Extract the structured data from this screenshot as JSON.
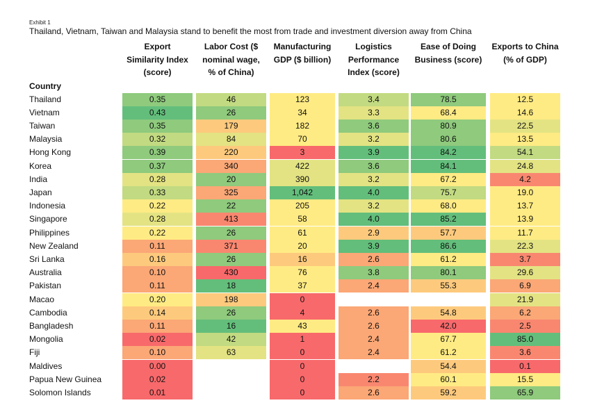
{
  "exhibit": "Exhibit 1",
  "title": "Thailand, Vietnam, Taiwan and Malaysia stand to benefit the most from trade and investment diversion away from China",
  "country_header": "Country",
  "columns": [
    {
      "key": "esi",
      "lines": [
        "Export",
        "Similarity Index",
        "(score)"
      ]
    },
    {
      "key": "labor",
      "lines": [
        "Labor Cost ($",
        "nominal wage,",
        "% of China)"
      ]
    },
    {
      "key": "mfg",
      "lines": [
        "Manufacturing",
        "GDP ($ billion)"
      ]
    },
    {
      "key": "lpi",
      "lines": [
        "Logistics",
        "Performance",
        "Index (score)"
      ]
    },
    {
      "key": "edb",
      "lines": [
        "Ease of Doing",
        "Business (score)"
      ]
    },
    {
      "key": "exp",
      "lines": [
        "Exports to China",
        "(% of GDP)"
      ]
    }
  ],
  "colors": {
    "dark_green": "#63be7b",
    "green": "#8fca7d",
    "light_green": "#c2da81",
    "yellow_green": "#e3e383",
    "yellow": "#ffeb84",
    "orange_light": "#fdca7d",
    "orange": "#fba776",
    "red_orange": "#f98770",
    "red": "#f8696b"
  },
  "rows": [
    {
      "country": "Thailand",
      "cells": [
        [
          "0.35",
          "green"
        ],
        [
          "46",
          "light_green"
        ],
        [
          "123",
          "yellow"
        ],
        [
          "3.4",
          "light_green"
        ],
        [
          "78.5",
          "green"
        ],
        [
          "12.5",
          "yellow"
        ]
      ]
    },
    {
      "country": "Vietnam",
      "cells": [
        [
          "0.43",
          "dark_green"
        ],
        [
          "26",
          "green"
        ],
        [
          "34",
          "yellow"
        ],
        [
          "3.3",
          "yellow_green"
        ],
        [
          "68.4",
          "yellow"
        ],
        [
          "14.6",
          "yellow"
        ]
      ]
    },
    {
      "country": "Taiwan",
      "cells": [
        [
          "0.35",
          "green"
        ],
        [
          "179",
          "orange_light"
        ],
        [
          "182",
          "yellow"
        ],
        [
          "3.6",
          "green"
        ],
        [
          "80.9",
          "green"
        ],
        [
          "22.5",
          "yellow_green"
        ]
      ]
    },
    {
      "country": "Malaysia",
      "cells": [
        [
          "0.32",
          "light_green"
        ],
        [
          "84",
          "yellow_green"
        ],
        [
          "70",
          "yellow"
        ],
        [
          "3.2",
          "yellow_green"
        ],
        [
          "80.6",
          "green"
        ],
        [
          "13.5",
          "yellow"
        ]
      ]
    },
    {
      "country": "Hong Kong",
      "cells": [
        [
          "0.39",
          "green"
        ],
        [
          "220",
          "orange_light"
        ],
        [
          "3",
          "red"
        ],
        [
          "3.9",
          "dark_green"
        ],
        [
          "84.2",
          "dark_green"
        ],
        [
          "54.1",
          "light_green"
        ]
      ]
    },
    {
      "country": "Korea",
      "cells": [
        [
          "0.37",
          "green"
        ],
        [
          "340",
          "orange"
        ],
        [
          "422",
          "yellow_green"
        ],
        [
          "3.6",
          "green"
        ],
        [
          "84.1",
          "dark_green"
        ],
        [
          "24.8",
          "yellow_green"
        ]
      ]
    },
    {
      "country": "India",
      "cells": [
        [
          "0.28",
          "yellow_green"
        ],
        [
          "20",
          "green"
        ],
        [
          "390",
          "yellow_green"
        ],
        [
          "3.2",
          "yellow_green"
        ],
        [
          "67.2",
          "yellow"
        ],
        [
          "4.2",
          "red_orange"
        ]
      ]
    },
    {
      "country": "Japan",
      "cells": [
        [
          "0.33",
          "light_green"
        ],
        [
          "325",
          "orange"
        ],
        [
          "1,042",
          "dark_green"
        ],
        [
          "4.0",
          "dark_green"
        ],
        [
          "75.7",
          "light_green"
        ],
        [
          "19.0",
          "yellow"
        ]
      ]
    },
    {
      "country": "Indonesia",
      "cells": [
        [
          "0.22",
          "yellow"
        ],
        [
          "22",
          "green"
        ],
        [
          "205",
          "yellow"
        ],
        [
          "3.2",
          "yellow_green"
        ],
        [
          "68.0",
          "yellow"
        ],
        [
          "13.7",
          "yellow"
        ]
      ]
    },
    {
      "country": "Singapore",
      "cells": [
        [
          "0.28",
          "yellow_green"
        ],
        [
          "413",
          "red_orange"
        ],
        [
          "58",
          "yellow"
        ],
        [
          "4.0",
          "dark_green"
        ],
        [
          "85.2",
          "dark_green"
        ],
        [
          "13.9",
          "yellow"
        ]
      ]
    },
    {
      "country": "Philippines",
      "cells": [
        [
          "0.22",
          "yellow"
        ],
        [
          "26",
          "green"
        ],
        [
          "61",
          "yellow"
        ],
        [
          "2.9",
          "orange_light"
        ],
        [
          "57.7",
          "orange_light"
        ],
        [
          "11.7",
          "yellow"
        ]
      ]
    },
    {
      "country": "New Zealand",
      "cells": [
        [
          "0.11",
          "orange"
        ],
        [
          "371",
          "red_orange"
        ],
        [
          "20",
          "yellow"
        ],
        [
          "3.9",
          "dark_green"
        ],
        [
          "86.6",
          "dark_green"
        ],
        [
          "22.3",
          "yellow_green"
        ]
      ]
    },
    {
      "country": "Sri Lanka",
      "cells": [
        [
          "0.16",
          "orange_light"
        ],
        [
          "26",
          "green"
        ],
        [
          "16",
          "orange_light"
        ],
        [
          "2.6",
          "orange"
        ],
        [
          "61.2",
          "yellow"
        ],
        [
          "3.7",
          "red_orange"
        ]
      ]
    },
    {
      "country": "Australia",
      "cells": [
        [
          "0.10",
          "orange"
        ],
        [
          "430",
          "red"
        ],
        [
          "76",
          "yellow"
        ],
        [
          "3.8",
          "green"
        ],
        [
          "80.1",
          "green"
        ],
        [
          "29.6",
          "yellow_green"
        ]
      ]
    },
    {
      "country": "Pakistan",
      "cells": [
        [
          "0.11",
          "orange"
        ],
        [
          "18",
          "dark_green"
        ],
        [
          "37",
          "yellow"
        ],
        [
          "2.4",
          "orange"
        ],
        [
          "55.3",
          "orange_light"
        ],
        [
          "6.9",
          "orange"
        ]
      ]
    },
    {
      "country": "Macao",
      "cells": [
        [
          "0.20",
          "yellow"
        ],
        [
          "198",
          "orange_light"
        ],
        [
          "0",
          "red"
        ],
        [
          "",
          ""
        ],
        [
          "",
          ""
        ],
        [
          "21.9",
          "yellow_green"
        ]
      ]
    },
    {
      "country": "Cambodia",
      "cells": [
        [
          "0.14",
          "orange_light"
        ],
        [
          "26",
          "green"
        ],
        [
          "4",
          "red"
        ],
        [
          "2.6",
          "orange"
        ],
        [
          "54.8",
          "orange_light"
        ],
        [
          "6.2",
          "orange"
        ]
      ]
    },
    {
      "country": "Bangladesh",
      "cells": [
        [
          "0.11",
          "orange"
        ],
        [
          "16",
          "dark_green"
        ],
        [
          "43",
          "yellow"
        ],
        [
          "2.6",
          "orange"
        ],
        [
          "42.0",
          "red"
        ],
        [
          "2.5",
          "red_orange"
        ]
      ]
    },
    {
      "country": "Mongolia",
      "cells": [
        [
          "0.02",
          "red"
        ],
        [
          "42",
          "light_green"
        ],
        [
          "1",
          "red"
        ],
        [
          "2.4",
          "orange"
        ],
        [
          "67.7",
          "yellow"
        ],
        [
          "85.0",
          "dark_green"
        ]
      ]
    },
    {
      "country": "Fiji",
      "cells": [
        [
          "0.10",
          "orange"
        ],
        [
          "63",
          "yellow_green"
        ],
        [
          "0",
          "red"
        ],
        [
          "2.4",
          "orange"
        ],
        [
          "61.2",
          "yellow"
        ],
        [
          "3.6",
          "red_orange"
        ]
      ]
    },
    {
      "country": "Maldives",
      "cells": [
        [
          "0.00",
          "red"
        ],
        [
          "",
          ""
        ],
        [
          "0",
          "red"
        ],
        [
          "",
          ""
        ],
        [
          "54.4",
          "orange_light"
        ],
        [
          "0.1",
          "red"
        ]
      ]
    },
    {
      "country": "Papua New Guinea",
      "cells": [
        [
          "0.02",
          "red"
        ],
        [
          "",
          ""
        ],
        [
          "0",
          "red"
        ],
        [
          "2.2",
          "red_orange"
        ],
        [
          "60.1",
          "yellow"
        ],
        [
          "15.5",
          "yellow"
        ]
      ]
    },
    {
      "country": "Solomon Islands",
      "cells": [
        [
          "0.01",
          "red"
        ],
        [
          "",
          ""
        ],
        [
          "0",
          "red"
        ],
        [
          "2.6",
          "orange"
        ],
        [
          "59.2",
          "orange_light"
        ],
        [
          "65.9",
          "green"
        ]
      ]
    }
  ]
}
